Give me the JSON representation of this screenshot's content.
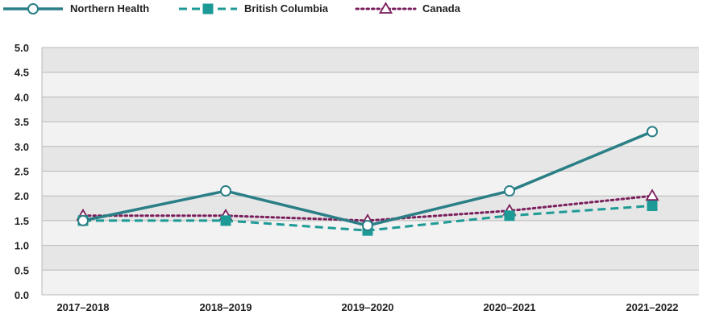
{
  "chart_data": {
    "type": "line",
    "categories": [
      "2017–2018",
      "2018–2019",
      "2019–2020",
      "2020–2021",
      "2021–2022"
    ],
    "series": [
      {
        "name": "Northern Health",
        "values": [
          1.5,
          2.1,
          1.4,
          2.1,
          3.3
        ],
        "color": "#2a7f86",
        "line": "solid",
        "marker": "circle"
      },
      {
        "name": "British Columbia",
        "values": [
          1.5,
          1.5,
          1.3,
          1.6,
          1.8
        ],
        "color": "#1e9a96",
        "line": "dashed",
        "marker": "square"
      },
      {
        "name": "Canada",
        "values": [
          1.6,
          1.6,
          1.5,
          1.7,
          2.0
        ],
        "color": "#7a1f5c",
        "line": "dotted",
        "marker": "triangle"
      }
    ],
    "y_ticks": [
      "0.0",
      "0.5",
      "1.0",
      "1.5",
      "2.0",
      "2.5",
      "3.0",
      "3.5",
      "4.0",
      "4.5",
      "5.0"
    ],
    "ylim": [
      0,
      5
    ],
    "title": "",
    "xlabel": "",
    "ylabel": "",
    "grid": true,
    "legend": "top-left"
  }
}
